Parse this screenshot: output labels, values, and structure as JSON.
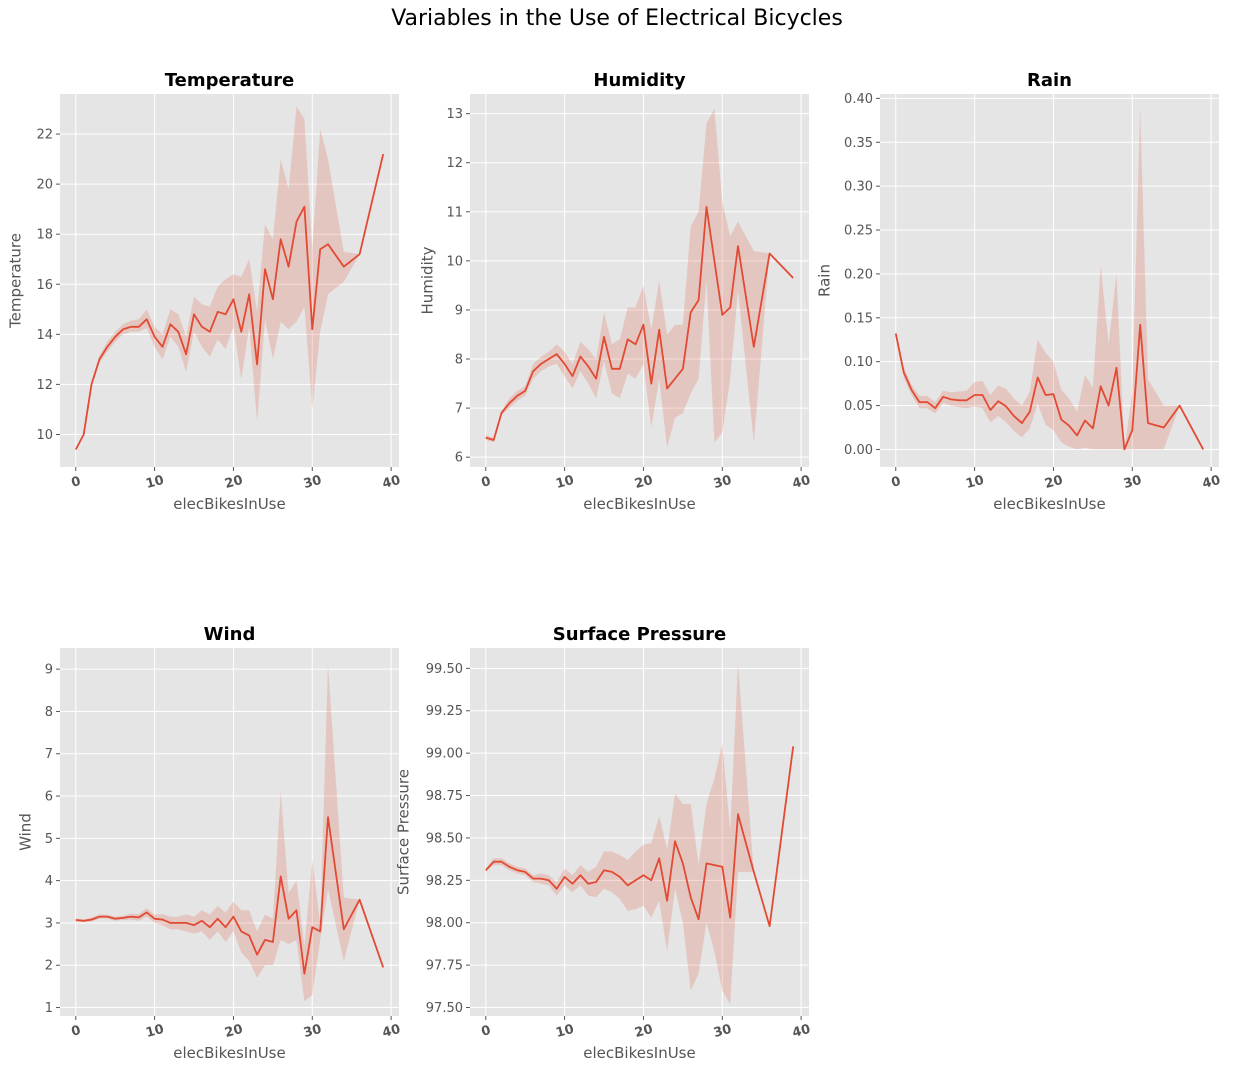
{
  "figure_title": "Variables in the Use of Electrical Bicycles",
  "style": {
    "axes_bg": "#e5e5e5",
    "grid": "#ffffff",
    "line": "#e24a33",
    "band": "#e24a33",
    "tick_text": "#555555"
  },
  "chart_data": [
    {
      "type": "line",
      "title": "Temperature",
      "xlabel": "elecBikesInUse",
      "ylabel": "Temperature",
      "grid": true,
      "xlim": [
        -2,
        41
      ],
      "ylim": [
        8.7,
        23.6
      ],
      "xticks": [
        0,
        10,
        20,
        30,
        40
      ],
      "yticks": [
        10,
        12,
        14,
        16,
        18,
        20,
        22
      ],
      "ytick_labels": [
        "10",
        "12",
        "14",
        "16",
        "18",
        "20",
        "22"
      ],
      "x": [
        0,
        1,
        2,
        3,
        4,
        5,
        6,
        7,
        8,
        9,
        10,
        11,
        12,
        13,
        14,
        15,
        16,
        17,
        18,
        19,
        20,
        21,
        22,
        23,
        24,
        25,
        26,
        27,
        28,
        29,
        30,
        31,
        32,
        34,
        36,
        39
      ],
      "mean": [
        9.4,
        10.0,
        12.0,
        13.0,
        13.5,
        13.9,
        14.2,
        14.3,
        14.3,
        14.6,
        13.9,
        13.5,
        14.4,
        14.1,
        13.2,
        14.8,
        14.3,
        14.1,
        14.9,
        14.8,
        15.4,
        14.1,
        15.6,
        12.8,
        16.6,
        15.4,
        17.8,
        16.7,
        18.5,
        19.1,
        14.2,
        17.4,
        17.6,
        16.7,
        17.2,
        21.2
      ],
      "ci_low": [
        9.35,
        9.95,
        11.9,
        12.85,
        13.3,
        13.7,
        14.0,
        14.1,
        14.1,
        14.25,
        13.5,
        13.0,
        13.9,
        13.5,
        12.5,
        14.1,
        13.5,
        13.1,
        13.8,
        13.4,
        14.3,
        12.2,
        14.3,
        10.5,
        14.6,
        13.0,
        14.5,
        14.2,
        14.5,
        15.1,
        11.0,
        14.1,
        15.6,
        16.1,
        17.2,
        21.2
      ],
      "ci_high": [
        9.45,
        10.05,
        12.1,
        13.15,
        13.7,
        14.1,
        14.4,
        14.55,
        14.6,
        15.0,
        14.3,
        14.0,
        15.0,
        14.8,
        13.9,
        15.5,
        15.2,
        15.1,
        15.9,
        16.2,
        16.4,
        16.3,
        17.0,
        14.9,
        18.4,
        17.8,
        21.0,
        19.8,
        23.1,
        22.6,
        17.4,
        22.2,
        21.0,
        17.3,
        17.2,
        21.2
      ]
    },
    {
      "type": "line",
      "title": "Humidity",
      "xlabel": "elecBikesInUse",
      "ylabel": "Humidity",
      "grid": true,
      "xlim": [
        -2,
        41
      ],
      "ylim": [
        5.8,
        13.4
      ],
      "xticks": [
        0,
        10,
        20,
        30,
        40
      ],
      "yticks": [
        6,
        7,
        8,
        9,
        10,
        11,
        12,
        13
      ],
      "ytick_labels": [
        "6",
        "7",
        "8",
        "9",
        "10",
        "11",
        "12",
        "13"
      ],
      "x": [
        0,
        1,
        2,
        3,
        4,
        5,
        6,
        7,
        8,
        9,
        10,
        11,
        12,
        13,
        14,
        15,
        16,
        17,
        18,
        19,
        20,
        21,
        22,
        23,
        24,
        25,
        26,
        27,
        28,
        29,
        30,
        31,
        32,
        34,
        36,
        39
      ],
      "mean": [
        6.4,
        6.35,
        6.9,
        7.1,
        7.25,
        7.35,
        7.75,
        7.9,
        8.0,
        8.1,
        7.9,
        7.65,
        8.05,
        7.85,
        7.6,
        8.45,
        7.8,
        7.8,
        8.4,
        8.3,
        8.7,
        7.5,
        8.6,
        7.4,
        7.6,
        7.8,
        8.95,
        9.2,
        11.1,
        10.0,
        8.9,
        9.05,
        10.3,
        8.25,
        10.15,
        9.65
      ],
      "ci_low": [
        6.35,
        6.3,
        6.85,
        7.0,
        7.15,
        7.25,
        7.6,
        7.75,
        7.85,
        7.9,
        7.65,
        7.4,
        7.75,
        7.5,
        7.2,
        7.95,
        7.3,
        7.2,
        7.7,
        7.6,
        7.9,
        6.6,
        7.6,
        6.2,
        6.8,
        6.9,
        7.3,
        7.6,
        9.6,
        6.3,
        6.5,
        7.6,
        9.4,
        6.3,
        10.15,
        9.65
      ],
      "ci_high": [
        6.45,
        6.4,
        6.95,
        7.2,
        7.35,
        7.45,
        7.9,
        8.05,
        8.15,
        8.3,
        8.15,
        7.9,
        8.35,
        8.2,
        8.0,
        8.95,
        8.3,
        8.4,
        9.05,
        9.05,
        9.5,
        8.6,
        9.6,
        8.5,
        8.7,
        8.7,
        10.7,
        11.0,
        12.8,
        13.1,
        11.2,
        10.5,
        10.8,
        10.2,
        10.15,
        9.65
      ]
    },
    {
      "type": "line",
      "title": "Rain",
      "xlabel": "elecBikesInUse",
      "ylabel": "Rain",
      "grid": true,
      "xlim": [
        -2,
        41
      ],
      "ylim": [
        -0.02,
        0.405
      ],
      "xticks": [
        0,
        10,
        20,
        30,
        40
      ],
      "yticks": [
        0.0,
        0.05,
        0.1,
        0.15,
        0.2,
        0.25,
        0.3,
        0.35,
        0.4
      ],
      "ytick_labels": [
        "0.00",
        "0.05",
        "0.10",
        "0.15",
        "0.20",
        "0.25",
        "0.30",
        "0.35",
        "0.40"
      ],
      "x": [
        0,
        1,
        2,
        3,
        4,
        5,
        6,
        7,
        8,
        9,
        10,
        11,
        12,
        13,
        14,
        15,
        16,
        17,
        18,
        19,
        20,
        21,
        22,
        23,
        24,
        25,
        26,
        27,
        28,
        29,
        30,
        31,
        32,
        34,
        36,
        39
      ],
      "mean": [
        0.132,
        0.088,
        0.068,
        0.054,
        0.054,
        0.047,
        0.06,
        0.057,
        0.056,
        0.056,
        0.062,
        0.062,
        0.045,
        0.055,
        0.049,
        0.038,
        0.03,
        0.043,
        0.082,
        0.062,
        0.063,
        0.034,
        0.027,
        0.016,
        0.033,
        0.024,
        0.072,
        0.05,
        0.093,
        0.0,
        0.022,
        0.142,
        0.03,
        0.025,
        0.05,
        0.0
      ],
      "ci_low": [
        0.128,
        0.082,
        0.062,
        0.047,
        0.047,
        0.041,
        0.053,
        0.05,
        0.048,
        0.047,
        0.049,
        0.047,
        0.031,
        0.038,
        0.031,
        0.021,
        0.014,
        0.024,
        0.052,
        0.028,
        0.022,
        0.008,
        0.003,
        0.0,
        0.002,
        0.0,
        0.0,
        0.0,
        0.0,
        0.0,
        0.0,
        0.0,
        0.0,
        0.0,
        0.05,
        0.0
      ],
      "ci_high": [
        0.136,
        0.094,
        0.074,
        0.061,
        0.061,
        0.054,
        0.067,
        0.065,
        0.066,
        0.067,
        0.077,
        0.078,
        0.062,
        0.073,
        0.069,
        0.058,
        0.05,
        0.066,
        0.125,
        0.11,
        0.1,
        0.068,
        0.058,
        0.043,
        0.085,
        0.07,
        0.21,
        0.12,
        0.2,
        0.0,
        0.065,
        0.39,
        0.08,
        0.05,
        0.05,
        0.0
      ]
    },
    {
      "type": "line",
      "title": "Wind",
      "xlabel": "elecBikesInUse",
      "ylabel": "Wind",
      "grid": true,
      "xlim": [
        -2,
        41
      ],
      "ylim": [
        0.8,
        9.5
      ],
      "xticks": [
        0,
        10,
        20,
        30,
        40
      ],
      "yticks": [
        1,
        2,
        3,
        4,
        5,
        6,
        7,
        8,
        9
      ],
      "ytick_labels": [
        "1",
        "2",
        "3",
        "4",
        "5",
        "6",
        "7",
        "8",
        "9"
      ],
      "x": [
        0,
        1,
        2,
        3,
        4,
        5,
        6,
        7,
        8,
        9,
        10,
        11,
        12,
        13,
        14,
        15,
        16,
        17,
        18,
        19,
        20,
        21,
        22,
        23,
        24,
        25,
        26,
        27,
        28,
        29,
        30,
        31,
        32,
        34,
        36,
        39
      ],
      "mean": [
        3.07,
        3.05,
        3.08,
        3.15,
        3.15,
        3.1,
        3.12,
        3.15,
        3.13,
        3.25,
        3.1,
        3.08,
        3.0,
        3.0,
        3.0,
        2.95,
        3.05,
        2.9,
        3.1,
        2.9,
        3.15,
        2.8,
        2.7,
        2.25,
        2.6,
        2.55,
        4.1,
        3.1,
        3.3,
        1.8,
        2.9,
        2.8,
        5.5,
        2.85,
        3.55,
        1.95
      ],
      "ci_low": [
        3.03,
        3.02,
        3.03,
        3.1,
        3.1,
        3.05,
        3.07,
        3.08,
        3.05,
        3.15,
        3.0,
        2.95,
        2.85,
        2.85,
        2.8,
        2.75,
        2.8,
        2.6,
        2.8,
        2.55,
        2.8,
        2.3,
        2.1,
        1.7,
        2.0,
        2.0,
        2.6,
        2.5,
        2.6,
        1.15,
        1.3,
        2.6,
        3.8,
        2.1,
        3.55,
        1.95
      ],
      "ci_high": [
        3.11,
        3.08,
        3.13,
        3.2,
        3.2,
        3.15,
        3.17,
        3.22,
        3.21,
        3.35,
        3.2,
        3.21,
        3.15,
        3.15,
        3.2,
        3.15,
        3.3,
        3.2,
        3.4,
        3.25,
        3.5,
        3.3,
        3.3,
        2.8,
        3.2,
        3.1,
        6.1,
        3.7,
        4.0,
        2.45,
        4.5,
        3.0,
        9.1,
        3.6,
        3.55,
        1.95
      ]
    },
    {
      "type": "line",
      "title": "Surface Pressure",
      "xlabel": "elecBikesInUse",
      "ylabel": "Surface Pressure",
      "grid": true,
      "xlim": [
        -2,
        41
      ],
      "ylim": [
        97.45,
        99.62
      ],
      "xticks": [
        0,
        10,
        20,
        30,
        40
      ],
      "yticks": [
        97.5,
        97.75,
        98.0,
        98.25,
        98.5,
        98.75,
        99.0,
        99.25,
        99.5
      ],
      "ytick_labels": [
        "97.50",
        "97.75",
        "98.00",
        "98.25",
        "98.50",
        "98.75",
        "99.00",
        "99.25",
        "99.50"
      ],
      "x": [
        0,
        1,
        2,
        3,
        4,
        5,
        6,
        7,
        8,
        9,
        10,
        11,
        12,
        13,
        14,
        15,
        16,
        17,
        18,
        19,
        20,
        21,
        22,
        23,
        24,
        25,
        26,
        27,
        28,
        29,
        30,
        31,
        32,
        34,
        36,
        39
      ],
      "mean": [
        98.31,
        98.36,
        98.36,
        98.33,
        98.31,
        98.3,
        98.26,
        98.26,
        98.25,
        98.2,
        98.27,
        98.23,
        98.28,
        98.23,
        98.24,
        98.31,
        98.3,
        98.27,
        98.22,
        98.25,
        98.28,
        98.25,
        98.38,
        98.13,
        98.48,
        98.35,
        98.15,
        98.02,
        98.35,
        98.34,
        98.33,
        98.03,
        98.64,
        98.3,
        97.98,
        99.04
      ],
      "ci_low": [
        98.3,
        98.34,
        98.34,
        98.31,
        98.29,
        98.28,
        98.24,
        98.23,
        98.22,
        98.16,
        98.22,
        98.18,
        98.22,
        98.16,
        98.15,
        98.2,
        98.18,
        98.14,
        98.07,
        98.08,
        98.1,
        98.03,
        98.13,
        97.83,
        98.2,
        98.0,
        97.6,
        97.7,
        98.0,
        97.83,
        97.6,
        97.52,
        98.3,
        98.3,
        97.98,
        99.04
      ],
      "ci_high": [
        98.32,
        98.38,
        98.38,
        98.35,
        98.33,
        98.32,
        98.28,
        98.29,
        98.28,
        98.24,
        98.32,
        98.28,
        98.34,
        98.3,
        98.33,
        98.42,
        98.42,
        98.4,
        98.37,
        98.42,
        98.46,
        98.47,
        98.63,
        98.43,
        98.76,
        98.7,
        98.7,
        98.34,
        98.7,
        98.85,
        99.06,
        98.54,
        99.53,
        98.3,
        97.98,
        99.04
      ]
    }
  ]
}
